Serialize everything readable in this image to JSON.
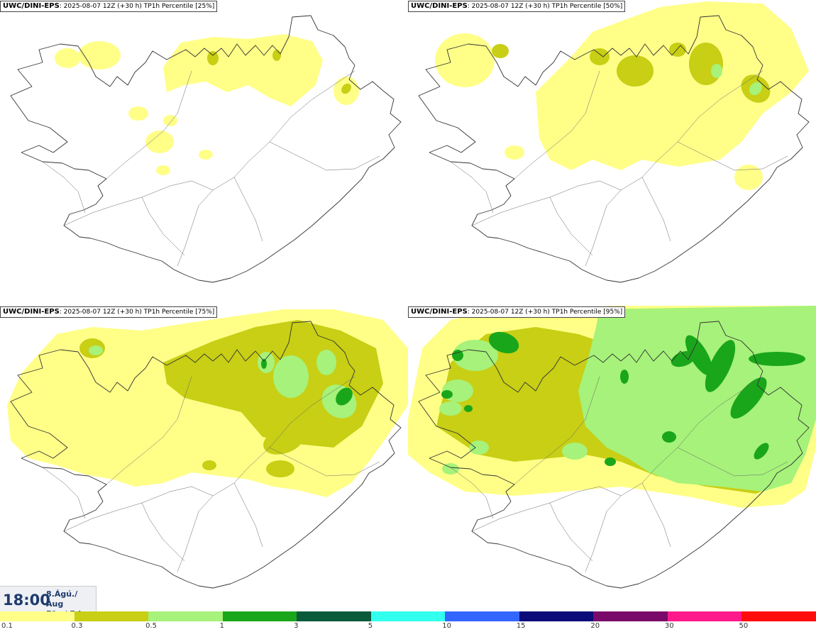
{
  "panels": [
    {
      "model": "UWC/DINI-EPS",
      "run": ": 2025-08-07 12Z (+30 h)",
      "field": "TP1h Percentile",
      "percentile": "[25%]",
      "level": 0
    },
    {
      "model": "UWC/DINI-EPS",
      "run": ": 2025-08-07 12Z (+30 h)",
      "field": "TP1h Percentile",
      "percentile": "[50%]",
      "level": 1
    },
    {
      "model": "UWC/DINI-EPS",
      "run": ": 2025-08-07 12Z (+30 h)",
      "field": "TP1h Percentile",
      "percentile": "[75%]",
      "level": 2
    },
    {
      "model": "UWC/DINI-EPS",
      "run": ": 2025-08-07 12Z (+30 h)",
      "field": "TP1h Percentile",
      "percentile": "[95%]",
      "level": 3
    }
  ],
  "time_box": {
    "time": "18:00",
    "date_line1": "8.Ágú./ Aug",
    "date_line2": "Fös./ Fri"
  },
  "legend": {
    "ticks": [
      "0.1",
      "0.3",
      "0.5",
      "1",
      "3",
      "5",
      "10",
      "15",
      "20",
      "30",
      "50"
    ],
    "colors": [
      "#ffff88",
      "#c8cf14",
      "#a6f27a",
      "#1aa61a",
      "#0a5a3c",
      "#33ffee",
      "#3366ff",
      "#0b0b7a",
      "#7a0a6a",
      "#ff1a8c",
      "#ff0d0d"
    ]
  }
}
